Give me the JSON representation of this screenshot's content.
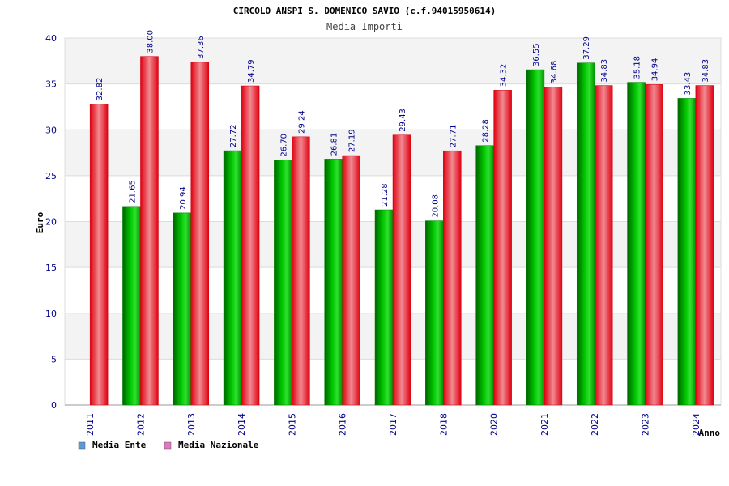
{
  "chart_data": {
    "type": "bar",
    "title": "CIRCOLO ANSPI S. DOMENICO SAVIO (c.f.94015950614)",
    "subtitle": "Media Importi",
    "ylabel": "Euro",
    "xlabel": "Anno",
    "ylim": [
      0,
      40
    ],
    "yticks": [
      "0",
      "5",
      "10",
      "15",
      "20",
      "25",
      "30",
      "35",
      "40"
    ],
    "grid": true,
    "legend_position": "bottom-left",
    "categories": [
      "2011",
      "2012",
      "2013",
      "2014",
      "2015",
      "2016",
      "2017",
      "2018",
      "2020",
      "2021",
      "2022",
      "2023",
      "2024"
    ],
    "series": [
      {
        "name": "Media Ente",
        "legend_color": "#5b9bd5",
        "bar_color": "#00b000",
        "values": [
          null,
          21.65,
          20.94,
          27.72,
          26.7,
          26.81,
          21.28,
          20.08,
          28.28,
          36.55,
          37.29,
          35.18,
          33.43
        ],
        "labels": [
          null,
          "21.65",
          "20.94",
          "27.72",
          "26.70",
          "26.81",
          "21.28",
          "20.08",
          "28.28",
          "36.55",
          "37.29",
          "35.18",
          "33.43"
        ]
      },
      {
        "name": "Media Nazionale",
        "legend_color": "#e377c2",
        "bar_color": "#e0101c",
        "values": [
          32.82,
          38.0,
          37.36,
          34.79,
          29.24,
          27.19,
          29.43,
          27.71,
          34.32,
          34.68,
          34.83,
          34.94,
          34.83
        ],
        "labels": [
          "32.82",
          "38.00",
          "37.36",
          "34.79",
          "29.24",
          "27.19",
          "29.43",
          "27.71",
          "34.32",
          "34.68",
          "34.83",
          "34.94",
          "34.83"
        ]
      }
    ]
  }
}
